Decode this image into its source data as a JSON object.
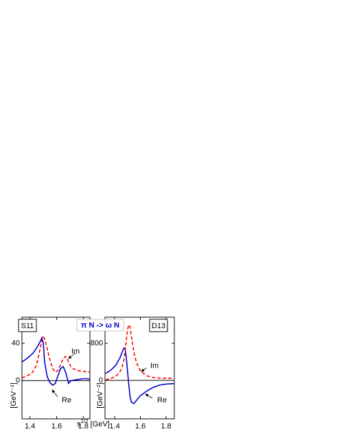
{
  "title": "π N -> ω N",
  "x_label": {
    "base": "s",
    "sup": "1/2",
    "rest": " [GeV]"
  },
  "chart_data": [
    {
      "type": "line",
      "panel_label": "S11",
      "y_label": "[GeV⁻¹]",
      "x": [
        1.34,
        1.38,
        1.42,
        1.45,
        1.47,
        1.49,
        1.5,
        1.51,
        1.53,
        1.55,
        1.57,
        1.59,
        1.61,
        1.63,
        1.65,
        1.67,
        1.69,
        1.71,
        1.75,
        1.8,
        1.85
      ],
      "series": [
        {
          "name": "Re",
          "color": "#0000cc",
          "dash": false,
          "values": [
            20,
            24,
            29,
            35,
            40,
            46,
            40,
            20,
            4,
            -2,
            -5,
            -3,
            5,
            13,
            15,
            8,
            -3,
            0,
            1,
            2,
            2
          ]
        },
        {
          "name": "Im",
          "color": "#ff0000",
          "dash": true,
          "values": [
            3,
            5,
            9,
            17,
            30,
            44,
            47,
            45,
            34,
            22,
            13,
            9,
            11,
            17,
            24,
            26,
            20,
            14,
            11,
            10,
            9
          ]
        }
      ],
      "xlim": [
        1.34,
        1.85
      ],
      "xticks": [
        1.4,
        1.6,
        1.8
      ],
      "ylim": [
        -41,
        68
      ],
      "yticks": [
        0,
        40
      ]
    },
    {
      "type": "line",
      "panel_label": "D13",
      "y_label": "[GeV⁻²]",
      "x": [
        1.33,
        1.37,
        1.41,
        1.44,
        1.46,
        1.47,
        1.48,
        1.49,
        1.5,
        1.51,
        1.52,
        1.53,
        1.55,
        1.57,
        1.6,
        1.65,
        1.7,
        1.75,
        1.8,
        1.86
      ],
      "series": [
        {
          "name": "Re",
          "color": "#0000cc",
          "dash": false,
          "values": [
            150,
            220,
            330,
            480,
            620,
            690,
            700,
            500,
            200,
            -100,
            -350,
            -470,
            -500,
            -430,
            -330,
            -230,
            -150,
            -100,
            -80,
            -70
          ]
        },
        {
          "name": "Im",
          "color": "#ff0000",
          "dash": true,
          "values": [
            10,
            40,
            90,
            180,
            300,
            420,
            600,
            850,
            1100,
            1200,
            1150,
            950,
            600,
            380,
            200,
            100,
            60,
            50,
            45,
            45
          ]
        }
      ],
      "xlim": [
        1.325,
        1.864
      ],
      "xticks": [
        1.4,
        1.6,
        1.8
      ],
      "ylim": [
        -830,
        1363
      ],
      "yticks": [
        0,
        800
      ]
    }
  ]
}
